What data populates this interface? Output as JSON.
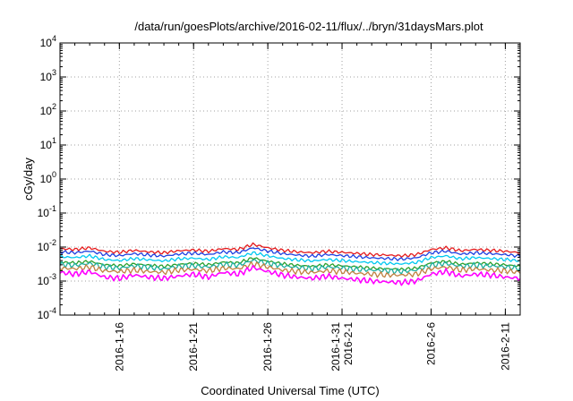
{
  "chart_data": {
    "type": "line",
    "title": "/data/run/goesPlots/archive/2016-02-11/flux/../bryn/31daysMars.plot",
    "xlabel": "Coordinated Universal Time (UTC)",
    "ylabel": "cGy/day",
    "y_scale": "log",
    "ylim": [
      0.0001,
      10000
    ],
    "xlim": [
      "2016-01-12",
      "2016-02-12"
    ],
    "grid": true,
    "legend": "none",
    "y_ticks": [
      {
        "base": "10",
        "exp": "-4"
      },
      {
        "base": "10",
        "exp": "-3"
      },
      {
        "base": "10",
        "exp": "-2"
      },
      {
        "base": "10",
        "exp": "-1"
      },
      {
        "base": "10",
        "exp": "0"
      },
      {
        "base": "10",
        "exp": "1"
      },
      {
        "base": "10",
        "exp": "2"
      },
      {
        "base": "10",
        "exp": "3"
      },
      {
        "base": "10",
        "exp": "4"
      }
    ],
    "x_ticks": [
      {
        "date": "2016-01-16",
        "lines": [
          "2016-1-16"
        ]
      },
      {
        "date": "2016-01-21",
        "lines": [
          "2016-1-21"
        ]
      },
      {
        "date": "2016-01-26",
        "lines": [
          "2016-1-26"
        ]
      },
      {
        "date": "2016-01-31",
        "lines": [
          "2016-1-31",
          "2016-2-1"
        ]
      },
      {
        "date": "2016-02-06",
        "lines": [
          "2016-2-6"
        ]
      },
      {
        "date": "2016-02-11",
        "lines": [
          "2016-2-11"
        ]
      }
    ],
    "series": [
      {
        "color": "#e41a1c",
        "values": [
          0.009,
          0.0085,
          0.0095,
          0.0075,
          0.007,
          0.008,
          0.0072,
          0.0068,
          0.0078,
          0.0082,
          0.0075,
          0.009,
          0.0085,
          0.012,
          0.0095,
          0.008,
          0.0072,
          0.0068,
          0.0075,
          0.007,
          0.0065,
          0.006,
          0.0058,
          0.0055,
          0.006,
          0.0085,
          0.0095,
          0.0078,
          0.0085,
          0.008,
          0.0075,
          0.0068
        ]
      },
      {
        "color": "#1f3fe0",
        "values": [
          0.0072,
          0.0068,
          0.0076,
          0.006,
          0.0056,
          0.0064,
          0.0058,
          0.0054,
          0.0062,
          0.0066,
          0.006,
          0.0072,
          0.0068,
          0.0095,
          0.0076,
          0.0064,
          0.0058,
          0.0054,
          0.006,
          0.0056,
          0.0052,
          0.0048,
          0.0046,
          0.0044,
          0.0048,
          0.0068,
          0.0076,
          0.0062,
          0.0068,
          0.0064,
          0.006,
          0.0054
        ]
      },
      {
        "color": "#00c8f0",
        "values": [
          0.0052,
          0.0049,
          0.0055,
          0.0043,
          0.004,
          0.0046,
          0.0042,
          0.0039,
          0.0045,
          0.0047,
          0.0043,
          0.0052,
          0.0049,
          0.0068,
          0.0055,
          0.0046,
          0.0042,
          0.0039,
          0.0043,
          0.004,
          0.0037,
          0.0035,
          0.0033,
          0.0032,
          0.0035,
          0.0049,
          0.0055,
          0.0045,
          0.0049,
          0.0046,
          0.0043,
          0.0039
        ]
      },
      {
        "color": "#2ca02c",
        "values": [
          0.0036,
          0.0034,
          0.0038,
          0.003,
          0.0028,
          0.0032,
          0.0029,
          0.0027,
          0.0031,
          0.0033,
          0.003,
          0.0036,
          0.0034,
          0.0048,
          0.0038,
          0.0032,
          0.0029,
          0.0027,
          0.003,
          0.0028,
          0.0026,
          0.0024,
          0.0023,
          0.0022,
          0.0024,
          0.0034,
          0.0038,
          0.0031,
          0.0034,
          0.0032,
          0.003,
          0.0027
        ]
      },
      {
        "color": "#20b0a0",
        "values": [
          0.0031,
          0.0029,
          0.0033,
          0.0026,
          0.0024,
          0.0028,
          0.0025,
          0.0023,
          0.0027,
          0.0028,
          0.0026,
          0.0031,
          0.0029,
          0.0041,
          0.0033,
          0.0028,
          0.0025,
          0.0023,
          0.0026,
          0.0024,
          0.0022,
          0.0021,
          0.002,
          0.0019,
          0.0021,
          0.0029,
          0.0033,
          0.0027,
          0.0029,
          0.0028,
          0.0026,
          0.0023
        ]
      },
      {
        "color": "#c08040",
        "values": [
          0.0024,
          0.0023,
          0.0026,
          0.002,
          0.0019,
          0.0021,
          0.0019,
          0.0018,
          0.0021,
          0.0022,
          0.002,
          0.0024,
          0.0023,
          0.0032,
          0.0026,
          0.0021,
          0.0019,
          0.0018,
          0.002,
          0.0019,
          0.0017,
          0.0016,
          0.0015,
          0.0015,
          0.0016,
          0.0023,
          0.0026,
          0.0021,
          0.0023,
          0.0021,
          0.002,
          0.0018
        ]
      },
      {
        "color": "#ff00ff",
        "values": [
          0.0018,
          0.0016,
          0.0019,
          0.0013,
          0.0012,
          0.0015,
          0.0013,
          0.0012,
          0.0014,
          0.0016,
          0.0013,
          0.0018,
          0.0016,
          0.0025,
          0.0019,
          0.0015,
          0.0013,
          0.0012,
          0.0014,
          0.0012,
          0.0011,
          0.001,
          0.00095,
          0.0009,
          0.001,
          0.0016,
          0.0019,
          0.0014,
          0.0016,
          0.0015,
          0.0013,
          0.0012
        ]
      }
    ]
  }
}
